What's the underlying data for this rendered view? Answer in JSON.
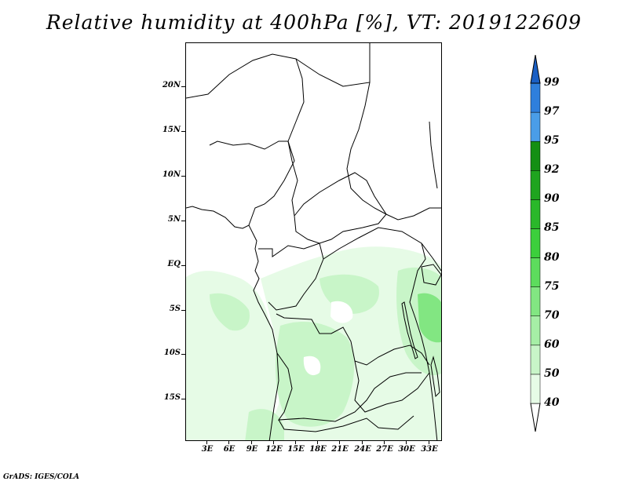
{
  "title": "Relative humidity at 400hPa [%], VT: 2019122609",
  "credit": "GrADS: IGES/COLA",
  "axes": {
    "y_ticks": [
      "20N",
      "15N",
      "10N",
      "5N",
      "EQ",
      "5S",
      "10S",
      "15S"
    ],
    "x_ticks": [
      "3E",
      "6E",
      "9E",
      "12E",
      "15E",
      "18E",
      "21E",
      "24E",
      "27E",
      "30E",
      "33E"
    ]
  },
  "colorbar": {
    "levels": [
      "40",
      "50",
      "60",
      "70",
      "75",
      "80",
      "85",
      "90",
      "92",
      "95",
      "97",
      "99"
    ],
    "colors": [
      "#ffffff",
      "#e6fbe6",
      "#c8f5c8",
      "#a6eea6",
      "#82e682",
      "#5ddc5d",
      "#3ccf3c",
      "#2ab82a",
      "#1fa41f",
      "#148f14",
      "#4a9de8",
      "#2f7fdc",
      "#1a5fc4"
    ]
  }
}
